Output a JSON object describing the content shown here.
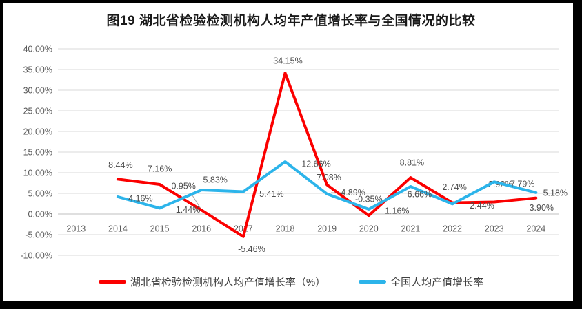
{
  "title": "图19 湖北省检验检测机构人均年产值增长率与全国情况的比较",
  "chart_data": {
    "type": "line",
    "categories": [
      "2013",
      "2014",
      "2015",
      "2016",
      "2017",
      "2018",
      "2019",
      "2020",
      "2021",
      "2022",
      "2023",
      "2024"
    ],
    "series": [
      {
        "name": "湖北省检验检测机构人均产值增长率（%）",
        "color": "#FB0000",
        "values": [
          null,
          8.44,
          7.16,
          0.95,
          -5.46,
          34.15,
          7.08,
          -0.35,
          8.81,
          2.74,
          2.92,
          3.9
        ],
        "labels": [
          "",
          "8.44%",
          "7.16%",
          "0.95%",
          "-5.46%",
          "34.15%",
          "7.08%",
          "-0.35%",
          "8.81%",
          "2.74%",
          "2.92%",
          "3.90%"
        ],
        "label_offsets": [
          [
            0,
            0
          ],
          [
            4,
            -21
          ],
          [
            0,
            -23
          ],
          [
            -26,
            -35
          ],
          [
            12,
            18
          ],
          [
            4,
            -18
          ],
          [
            3,
            -11
          ],
          [
            0,
            -24
          ],
          [
            2,
            -22
          ],
          [
            3,
            -23
          ],
          [
            9,
            -26
          ],
          [
            8,
            14
          ]
        ]
      },
      {
        "name": "全国人均产值增长率",
        "color": "#2CB4EA",
        "values": [
          null,
          4.16,
          1.44,
          5.83,
          5.41,
          12.66,
          4.89,
          1.16,
          6.66,
          2.44,
          7.79,
          5.18
        ],
        "labels": [
          "",
          "4.16%",
          "1.44%",
          "5.83%",
          "5.41%",
          "12.66%",
          "4.89%",
          "1.16%",
          "6.66%",
          "2.44%",
          "7.79%",
          "5.18%"
        ],
        "label_offsets": [
          [
            0,
            0
          ],
          [
            33,
            2
          ],
          [
            41,
            2
          ],
          [
            20,
            -15
          ],
          [
            41,
            3
          ],
          [
            45,
            3
          ],
          [
            38,
            -2
          ],
          [
            41,
            2
          ],
          [
            13,
            11
          ],
          [
            43,
            2
          ],
          [
            41,
            3
          ],
          [
            28,
            0
          ]
        ]
      }
    ],
    "yticks": [
      "40.00%",
      "35.00%",
      "30.00%",
      "25.00%",
      "20.00%",
      "15.00%",
      "10.00%",
      "5.00%",
      "0.00%",
      "-5.00%",
      "-10.00%"
    ],
    "ylim": [
      -10,
      40
    ],
    "ytick_step": 5,
    "grid": true,
    "legend_position": "bottom",
    "label_leaders": [
      [
        279,
        284,
        291,
        303
      ],
      [
        480,
        280,
        494,
        280
      ]
    ]
  },
  "colors": {
    "gridline": "#D9D9D9",
    "zero_axis": "#BFBFBF",
    "axis_text": "#595959",
    "data_label": "#4D4D4D",
    "leader": "#A6A6A6",
    "border": "#000000"
  }
}
